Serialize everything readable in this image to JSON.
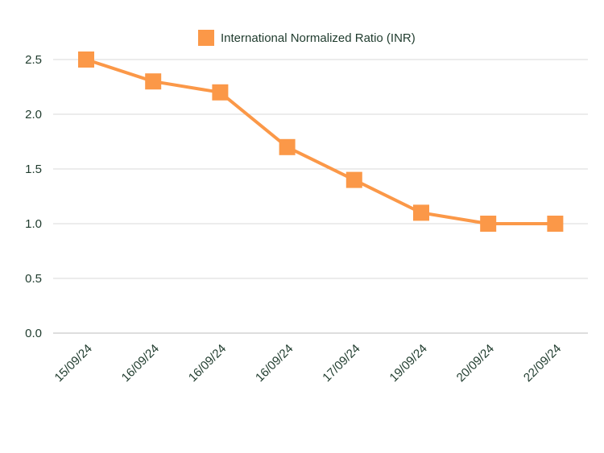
{
  "chart_data": {
    "type": "line",
    "categories": [
      "15/09/24",
      "16/09/24",
      "16/09/24",
      "16/09/24",
      "17/09/24",
      "19/09/24",
      "20/09/24",
      "22/09/24"
    ],
    "series": [
      {
        "name": "International Normalized Ratio (INR)",
        "values": [
          2.5,
          2.3,
          2.2,
          1.7,
          1.4,
          1.1,
          1.0,
          1.0
        ],
        "color": "#fb9848"
      }
    ],
    "title": "",
    "xlabel": "",
    "ylabel": "",
    "ylim": [
      0,
      2.5
    ],
    "yticks": [
      "0.0",
      "0.5",
      "1.0",
      "1.5",
      "2.0",
      "2.5"
    ],
    "grid": true,
    "legend_position": "top-center"
  }
}
